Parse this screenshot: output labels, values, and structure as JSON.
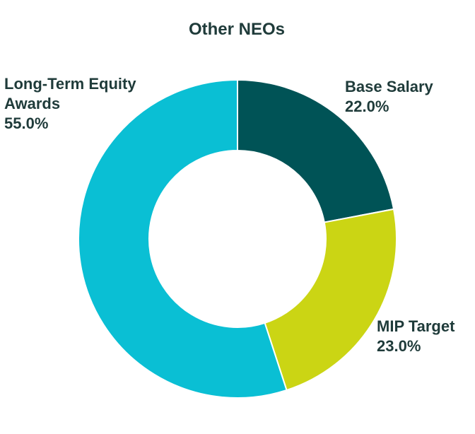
{
  "chart_data": {
    "type": "pie",
    "title": "Other NEOs",
    "categories": [
      "Base Salary",
      "MIP Target",
      "Long-Term Equity Awards"
    ],
    "values": [
      22.0,
      23.0,
      55.0
    ],
    "value_labels": [
      "22.0%",
      "23.0%",
      "55.0%"
    ],
    "label_lines": [
      [
        "Base Salary"
      ],
      [
        "MIP Target"
      ],
      [
        "Long-Term Equity",
        "Awards"
      ]
    ],
    "colors": [
      "#005356",
      "#cbd514",
      "#0abfd4"
    ],
    "donut": true,
    "legend": "none"
  }
}
